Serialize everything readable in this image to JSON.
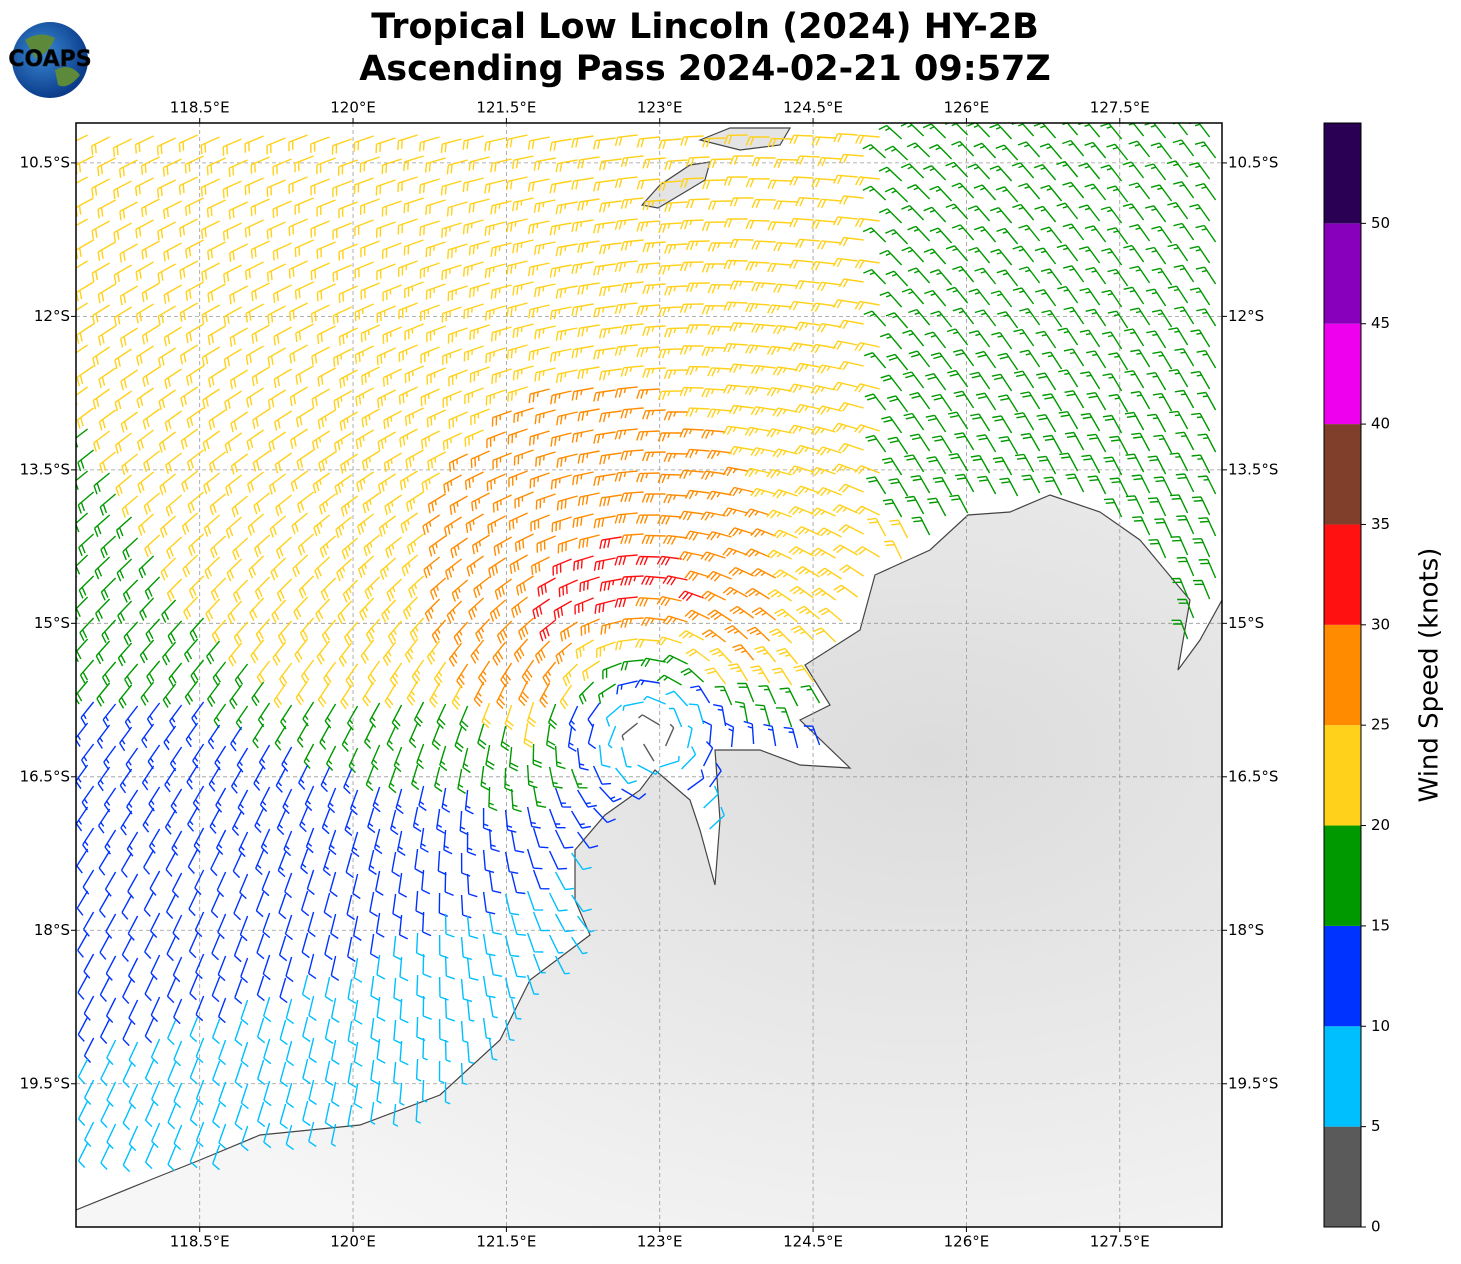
{
  "header": {
    "title": [
      "Tropical Low Lincoln (2024) HY-2B",
      "Ascending Pass 2024-02-21 09:57Z"
    ]
  },
  "logo": "COAPS",
  "map": {
    "xlim": [
      117.29,
      128.5
    ],
    "ylim": [
      -20.9,
      -10.11
    ],
    "grid": true,
    "xticks": [
      {
        "value": 118.5,
        "label": "118.5°E"
      },
      {
        "value": 120,
        "label": "120°E"
      },
      {
        "value": 121.5,
        "label": "121.5°E"
      },
      {
        "value": 123,
        "label": "123°E"
      },
      {
        "value": 124.5,
        "label": "124.5°E"
      },
      {
        "value": 126,
        "label": "126°E"
      },
      {
        "value": 127.5,
        "label": "127.5°E"
      }
    ],
    "yticks": [
      {
        "value": -10.5,
        "label": "10.5°S"
      },
      {
        "value": -12,
        "label": "12°S"
      },
      {
        "value": -13.5,
        "label": "13.5°S"
      },
      {
        "value": -15,
        "label": "15°S"
      },
      {
        "value": -16.5,
        "label": "16.5°S"
      },
      {
        "value": -18,
        "label": "18°S"
      },
      {
        "value": -19.5,
        "label": "19.5°S"
      }
    ]
  },
  "colorbar": {
    "label": "Wind Speed (knots)",
    "lim": [
      0,
      55
    ],
    "ticks": [
      0,
      5,
      10,
      15,
      20,
      25,
      30,
      35,
      40,
      45,
      50
    ],
    "colors": [
      "#5a5a5a",
      "#00bfff",
      "#0033ff",
      "#009900",
      "#ffd11a",
      "#ff8c00",
      "#ff1111",
      "#7f3f2a",
      "#ee00ee",
      "#8800bb",
      "#2a0055"
    ]
  }
}
